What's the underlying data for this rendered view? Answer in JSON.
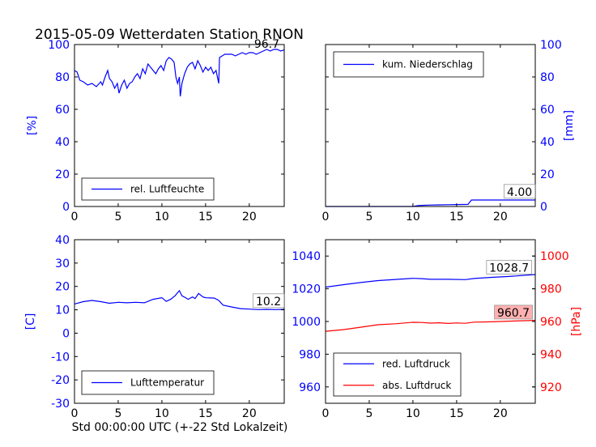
{
  "title": "2015-05-09 Wetterdaten Station RNON",
  "colors": {
    "blue": "#0000ff",
    "red": "#ff0000",
    "axis": "#000000",
    "annot_bg": "#ffb0b0"
  },
  "chart_data": [
    {
      "id": "humidity",
      "type": "line",
      "ylabel": "[%]",
      "xlim": [
        0,
        24
      ],
      "ylim": [
        0,
        100
      ],
      "xticks": [
        0,
        5,
        10,
        15,
        20
      ],
      "yticks": [
        0,
        20,
        40,
        60,
        80,
        100
      ],
      "yaxis_side": "left",
      "legend": "bottom-center",
      "series": [
        {
          "name": "rel. Luftfeuchte",
          "color": "#0000ff",
          "points": [
            [
              0,
              84
            ],
            [
              0.3,
              83
            ],
            [
              0.6,
              78
            ],
            [
              1,
              77
            ],
            [
              1.5,
              75
            ],
            [
              2,
              76
            ],
            [
              2.5,
              74
            ],
            [
              3,
              77
            ],
            [
              3.2,
              75
            ],
            [
              3.5,
              80
            ],
            [
              3.8,
              84
            ],
            [
              4,
              79
            ],
            [
              4.3,
              77
            ],
            [
              4.6,
              73
            ],
            [
              4.9,
              76
            ],
            [
              5.1,
              70
            ],
            [
              5.4,
              75
            ],
            [
              5.7,
              78
            ],
            [
              6,
              73
            ],
            [
              6.3,
              76
            ],
            [
              6.6,
              77
            ],
            [
              6.9,
              80
            ],
            [
              7.2,
              82
            ],
            [
              7.5,
              79
            ],
            [
              7.8,
              85
            ],
            [
              8.1,
              82
            ],
            [
              8.4,
              88
            ],
            [
              8.7,
              86
            ],
            [
              9,
              84
            ],
            [
              9.3,
              82
            ],
            [
              9.6,
              85
            ],
            [
              9.9,
              87
            ],
            [
              10.2,
              84
            ],
            [
              10.5,
              90
            ],
            [
              10.8,
              92
            ],
            [
              11.1,
              91
            ],
            [
              11.4,
              89
            ],
            [
              11.6,
              80
            ],
            [
              11.8,
              76
            ],
            [
              12,
              80
            ],
            [
              12.1,
              68
            ],
            [
              12.3,
              76
            ],
            [
              12.6,
              82
            ],
            [
              12.9,
              86
            ],
            [
              13.2,
              88
            ],
            [
              13.5,
              89
            ],
            [
              13.8,
              85
            ],
            [
              14.1,
              90
            ],
            [
              14.4,
              87
            ],
            [
              14.7,
              83
            ],
            [
              15,
              86
            ],
            [
              15.3,
              84
            ],
            [
              15.6,
              86
            ],
            [
              15.9,
              82
            ],
            [
              16.2,
              84
            ],
            [
              16.5,
              76
            ],
            [
              16.6,
              92
            ],
            [
              16.9,
              93
            ],
            [
              17.2,
              94
            ],
            [
              17.6,
              94
            ],
            [
              18,
              94
            ],
            [
              18.4,
              93
            ],
            [
              18.8,
              94
            ],
            [
              19.2,
              95
            ],
            [
              19.6,
              94
            ],
            [
              20,
              95
            ],
            [
              20.4,
              95
            ],
            [
              20.8,
              94
            ],
            [
              21.2,
              95
            ],
            [
              21.6,
              96
            ],
            [
              22,
              97
            ],
            [
              22.4,
              96
            ],
            [
              22.8,
              97
            ],
            [
              23.2,
              97
            ],
            [
              23.6,
              96
            ],
            [
              24,
              96.7
            ]
          ]
        }
      ],
      "annotations": [
        {
          "text": "96.7",
          "x": 22.0,
          "y": 98,
          "boxed": false
        }
      ]
    },
    {
      "id": "precip",
      "type": "line",
      "ylabel": "[mm]",
      "xlim": [
        0,
        24
      ],
      "ylim": [
        0,
        100
      ],
      "xticks": [
        0,
        5,
        10,
        15,
        20
      ],
      "yticks": [
        0,
        20,
        40,
        60,
        80,
        100
      ],
      "yaxis_side": "right",
      "legend": "top-left",
      "series": [
        {
          "name": "kum. Niederschlag",
          "color": "#0000ff",
          "points": [
            [
              0,
              0
            ],
            [
              10,
              0
            ],
            [
              10.6,
              0.6
            ],
            [
              11,
              0.7
            ],
            [
              12,
              0.9
            ],
            [
              13,
              1.0
            ],
            [
              14,
              1.1
            ],
            [
              15,
              1.2
            ],
            [
              16.3,
              1.3
            ],
            [
              16.7,
              4.0
            ],
            [
              24,
              4.0
            ]
          ]
        }
      ],
      "annotations": [
        {
          "text": "4.00",
          "x": 22.2,
          "y": 6.6,
          "boxed": true
        }
      ]
    },
    {
      "id": "temperature",
      "type": "line",
      "ylabel": "[C]",
      "xlabel": "Std 00:00:00 UTC (+-22 Std Lokalzeit)",
      "xlim": [
        0,
        24
      ],
      "ylim": [
        -30,
        40
      ],
      "xticks": [
        0,
        5,
        10,
        15,
        20
      ],
      "yticks": [
        -30,
        -20,
        -10,
        0,
        10,
        20,
        30,
        40
      ],
      "yaxis_side": "left",
      "legend": "bottom-center",
      "series": [
        {
          "name": "Lufttemperatur",
          "color": "#0000ff",
          "points": [
            [
              0,
              12.5
            ],
            [
              1,
              13.5
            ],
            [
              2,
              14.0
            ],
            [
              3,
              13.5
            ],
            [
              4,
              12.8
            ],
            [
              5,
              13.2
            ],
            [
              6,
              13.0
            ],
            [
              7,
              13.2
            ],
            [
              8,
              13.0
            ],
            [
              9,
              14.5
            ],
            [
              10,
              15.2
            ],
            [
              10.5,
              13.6
            ],
            [
              11,
              14.5
            ],
            [
              11.5,
              16.0
            ],
            [
              12,
              18.2
            ],
            [
              12.3,
              16.0
            ],
            [
              12.7,
              15.2
            ],
            [
              13,
              14.5
            ],
            [
              13.5,
              15.5
            ],
            [
              13.8,
              14.8
            ],
            [
              14.2,
              17.0
            ],
            [
              14.7,
              15.5
            ],
            [
              15,
              15.2
            ],
            [
              16,
              15.0
            ],
            [
              16.5,
              14.0
            ],
            [
              17,
              12.0
            ],
            [
              18,
              11.2
            ],
            [
              19,
              10.5
            ],
            [
              20,
              10.3
            ],
            [
              21,
              10.1
            ],
            [
              22,
              10.2
            ],
            [
              23,
              10.1
            ],
            [
              24,
              10.2
            ]
          ]
        }
      ],
      "annotations": [
        {
          "text": "10.2",
          "x": 22.2,
          "y": 12.0,
          "boxed": true
        }
      ]
    },
    {
      "id": "pressure",
      "type": "line",
      "xlim": [
        0,
        24
      ],
      "ylim": [
        950,
        1050
      ],
      "xticks": [
        0,
        5,
        10,
        15,
        20
      ],
      "yticks": [
        960,
        980,
        1000,
        1020,
        1040
      ],
      "yaxis_side": "left",
      "ylim2": [
        910,
        1010
      ],
      "yticks2": [
        920,
        940,
        960,
        980,
        1000
      ],
      "ylabel2": "[hPa]",
      "legend": "bottom-left",
      "series": [
        {
          "name": "red. Luftdruck",
          "color": "#0000ff",
          "axis": "left",
          "points": [
            [
              0,
              1021
            ],
            [
              2,
              1022.5
            ],
            [
              4,
              1023.8
            ],
            [
              6,
              1025
            ],
            [
              8,
              1025.7
            ],
            [
              10,
              1026.4
            ],
            [
              11,
              1026.2
            ],
            [
              12,
              1025.8
            ],
            [
              14,
              1025.8
            ],
            [
              16,
              1025.6
            ],
            [
              17,
              1026.3
            ],
            [
              19,
              1027
            ],
            [
              21,
              1027.5
            ],
            [
              24,
              1028.7
            ]
          ]
        },
        {
          "name": "abs. Luftdruck",
          "color": "#ff0000",
          "axis": "right",
          "points": [
            [
              0,
              954
            ],
            [
              2,
              955
            ],
            [
              4,
              956.5
            ],
            [
              6,
              958
            ],
            [
              8,
              958.6
            ],
            [
              10,
              959.5
            ],
            [
              11,
              959.4
            ],
            [
              12,
              959
            ],
            [
              13,
              959.2
            ],
            [
              14,
              958.8
            ],
            [
              15,
              959.1
            ],
            [
              16,
              958.9
            ],
            [
              17,
              959.6
            ],
            [
              19,
              959.8
            ],
            [
              21,
              960.2
            ],
            [
              24,
              960.7
            ]
          ]
        }
      ],
      "annotations": [
        {
          "text": "1028.7",
          "x": 21.0,
          "y": 1030.5,
          "axis": "left",
          "boxed": true,
          "fill": false
        },
        {
          "text": "960.7",
          "x": 21.5,
          "y": 963.0,
          "axis": "right",
          "boxed": true,
          "fill": true
        }
      ]
    }
  ]
}
